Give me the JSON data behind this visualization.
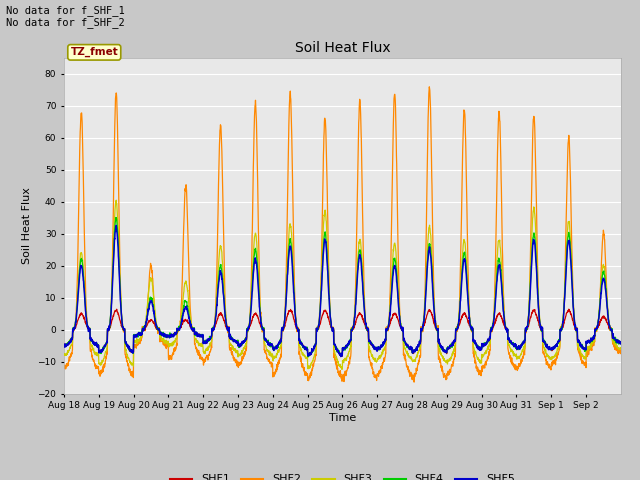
{
  "title": "Soil Heat Flux",
  "xlabel": "Time",
  "ylabel": "Soil Heat Flux",
  "ylim": [
    -20,
    85
  ],
  "yticks": [
    -20,
    -10,
    0,
    10,
    20,
    30,
    40,
    50,
    60,
    70,
    80
  ],
  "fig_bg": "#c8c8c8",
  "plot_bg": "#e8e8e8",
  "annotation_text": "No data for f_SHF_1\nNo data for f_SHF_2",
  "tz_label": "TZ_fmet",
  "legend_entries": [
    "SHF1",
    "SHF2",
    "SHF3",
    "SHF4",
    "SHF5"
  ],
  "line_colors": {
    "SHF1": "#cc0000",
    "SHF2": "#ff8800",
    "SHF3": "#cccc00",
    "SHF4": "#00cc00",
    "SHF5": "#0000cc"
  },
  "n_days": 16,
  "x_labels": [
    "Aug 18",
    "Aug 19",
    "Aug 20",
    "Aug 21",
    "Aug 22",
    "Aug 23",
    "Aug 24",
    "Aug 25",
    "Aug 26",
    "Aug 27",
    "Aug 28",
    "Aug 29",
    "Aug 30",
    "Aug 31",
    "Sep 1",
    "Sep 2"
  ],
  "shf2_peaks": [
    68,
    74,
    20,
    45,
    64,
    71,
    74,
    66,
    71,
    74,
    76,
    69,
    68,
    67,
    60,
    30
  ],
  "shf2_nights": [
    -12,
    -14,
    -5,
    -9,
    -10,
    -11,
    -14,
    -15,
    -15,
    -14,
    -15,
    -14,
    -12,
    -12,
    -11,
    -7
  ],
  "shf3_peaks": [
    24,
    40,
    16,
    15,
    26,
    30,
    33,
    37,
    28,
    27,
    32,
    28,
    28,
    38,
    34,
    20
  ],
  "shf3_nights": [
    -8,
    -11,
    -4,
    -5,
    -7,
    -8,
    -9,
    -12,
    -10,
    -9,
    -10,
    -10,
    -8,
    -9,
    -9,
    -6
  ],
  "shf4_peaks": [
    22,
    35,
    10,
    9,
    20,
    25,
    28,
    30,
    25,
    22,
    27,
    24,
    22,
    30,
    30,
    18
  ],
  "shf4_nights": [
    -5,
    -7,
    -2,
    -2,
    -4,
    -5,
    -6,
    -8,
    -6,
    -6,
    -7,
    -6,
    -5,
    -6,
    -6,
    -4
  ],
  "shf5_peaks": [
    20,
    32,
    9,
    7,
    18,
    22,
    26,
    28,
    23,
    20,
    25,
    22,
    20,
    28,
    28,
    16
  ],
  "shf5_nights": [
    -5,
    -7,
    -2,
    -2,
    -4,
    -5,
    -6,
    -8,
    -6,
    -6,
    -7,
    -6,
    -5,
    -6,
    -6,
    -4
  ],
  "shf1_peaks": [
    5,
    6,
    3,
    3,
    5,
    5,
    6,
    6,
    5,
    5,
    6,
    5,
    5,
    6,
    6,
    4
  ],
  "shf1_nights": [
    -5,
    -7,
    -2,
    -2,
    -4,
    -5,
    -6,
    -8,
    -6,
    -6,
    -7,
    -6,
    -5,
    -6,
    -6,
    -4
  ]
}
